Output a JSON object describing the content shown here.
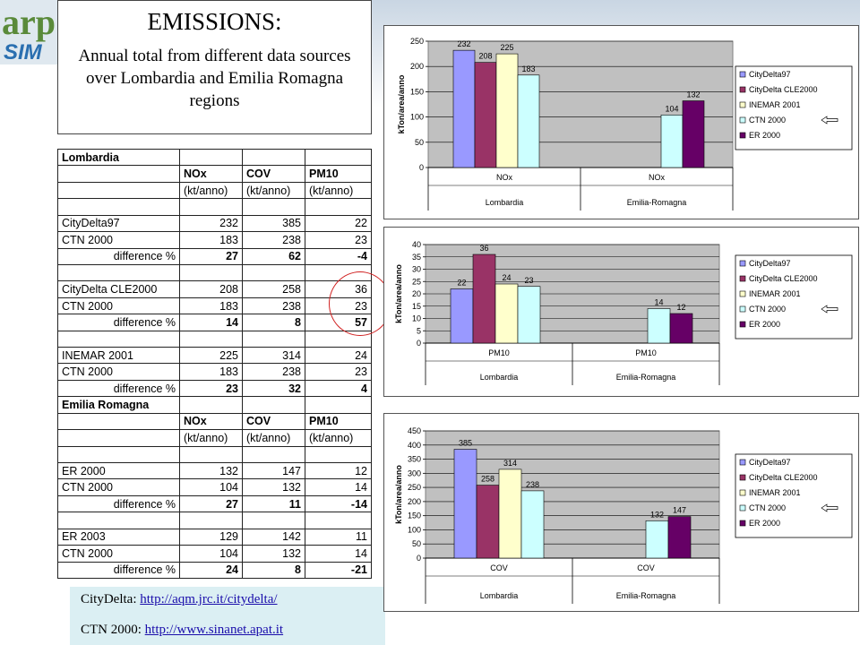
{
  "logo": {
    "text": "arp",
    "sub": "SIM"
  },
  "title": {
    "heading": "EMISSIONS:",
    "subtitle": "Annual total from different data sources over Lombardia and Emilia Romagna regions"
  },
  "table": {
    "sections": [
      {
        "region": "Lombardia",
        "headers": [
          "NOx",
          "COV",
          "PM10"
        ],
        "units": [
          "(kt/anno)",
          "(kt/anno)",
          "(kt/anno)"
        ],
        "groups": [
          {
            "rows": [
              {
                "label": "CityDelta97",
                "values": [
                  "232",
                  "385",
                  "22"
                ]
              },
              {
                "label": "CTN 2000",
                "values": [
                  "183",
                  "238",
                  "23"
                ]
              },
              {
                "label": "difference %",
                "values": [
                  "27",
                  "62",
                  "-4"
                ],
                "diff": true
              }
            ]
          },
          {
            "rows": [
              {
                "label": "CityDelta CLE2000",
                "values": [
                  "208",
                  "258",
                  "36"
                ]
              },
              {
                "label": "CTN 2000",
                "values": [
                  "183",
                  "238",
                  "23"
                ]
              },
              {
                "label": "difference %",
                "values": [
                  "14",
                  "8",
                  "57"
                ],
                "diff": true
              }
            ]
          },
          {
            "rows": [
              {
                "label": "INEMAR 2001",
                "values": [
                  "225",
                  "314",
                  "24"
                ]
              },
              {
                "label": "CTN 2000",
                "values": [
                  "183",
                  "238",
                  "23"
                ]
              },
              {
                "label": "difference %",
                "values": [
                  "23",
                  "32",
                  "4"
                ],
                "diff": true
              }
            ]
          }
        ]
      },
      {
        "region": "Emilia Romagna",
        "headers": [
          "NOx",
          "COV",
          "PM10"
        ],
        "units": [
          "(kt/anno)",
          "(kt/anno)",
          "(kt/anno)"
        ],
        "groups": [
          {
            "rows": [
              {
                "label": "ER 2000",
                "values": [
                  "132",
                  "147",
                  "12"
                ]
              },
              {
                "label": "CTN 2000",
                "values": [
                  "104",
                  "132",
                  "14"
                ]
              },
              {
                "label": "difference %",
                "values": [
                  "27",
                  "11",
                  "-14"
                ],
                "diff": true
              }
            ]
          },
          {
            "rows": [
              {
                "label": "ER 2003",
                "values": [
                  "129",
                  "142",
                  "11"
                ]
              },
              {
                "label": "CTN 2000",
                "values": [
                  "104",
                  "132",
                  "14"
                ]
              },
              {
                "label": "difference %",
                "values": [
                  "24",
                  "8",
                  "-21"
                ],
                "diff": true
              }
            ]
          }
        ]
      }
    ]
  },
  "links": {
    "citydelta_label": "CityDelta:",
    "citydelta_url": "http://aqm.jrc.it/citydelta/",
    "ctn_label": "CTN 2000:",
    "ctn_url": "http://www.sinanet.apat.it"
  },
  "colors": {
    "CityDelta97": "#9999ff",
    "CityDelta CLE2000": "#993366",
    "INEMAR 2001": "#ffffcc",
    "CTN 2000": "#ccffff",
    "ER 2000": "#660066"
  },
  "chart_data": [
    {
      "type": "bar",
      "ylabel": "kTon/area/anno",
      "ylim": [
        0,
        250
      ],
      "yticks": [
        0,
        50,
        100,
        150,
        200,
        250
      ],
      "legend_position": "right",
      "grid": true,
      "groups": [
        {
          "category": "NOx",
          "region": "Lombardia",
          "bars": [
            {
              "series": "CityDelta97",
              "value": 232
            },
            {
              "series": "CityDelta CLE2000",
              "value": 208
            },
            {
              "series": "INEMAR 2001",
              "value": 225
            },
            {
              "series": "CTN 2000",
              "value": 183
            }
          ]
        },
        {
          "category": "NOx",
          "region": "Emilia-Romagna",
          "bars": [
            {
              "series": "CTN 2000",
              "value": 104
            },
            {
              "series": "ER 2000",
              "value": 132
            }
          ]
        }
      ],
      "legend": [
        "CityDelta97",
        "CityDelta CLE2000",
        "INEMAR 2001",
        "CTN 2000",
        "ER 2000"
      ],
      "highlight_series": "CTN 2000"
    },
    {
      "type": "bar",
      "ylabel": "kTon/area/anno",
      "ylim": [
        0,
        40
      ],
      "yticks": [
        0,
        5,
        10,
        15,
        20,
        25,
        30,
        35,
        40
      ],
      "legend_position": "right",
      "grid": true,
      "groups": [
        {
          "category": "PM10",
          "region": "Lombardia",
          "bars": [
            {
              "series": "CityDelta97",
              "value": 22
            },
            {
              "series": "CityDelta CLE2000",
              "value": 36
            },
            {
              "series": "INEMAR 2001",
              "value": 24
            },
            {
              "series": "CTN 2000",
              "value": 23
            }
          ]
        },
        {
          "category": "PM10",
          "region": "Emilia-Romagna",
          "bars": [
            {
              "series": "CTN 2000",
              "value": 14
            },
            {
              "series": "ER 2000",
              "value": 12
            }
          ]
        }
      ],
      "legend": [
        "CityDelta97",
        "CityDelta CLE2000",
        "INEMAR 2001",
        "CTN 2000",
        "ER 2000"
      ],
      "highlight_series": "CTN 2000"
    },
    {
      "type": "bar",
      "ylabel": "kTon/area/anno",
      "ylim": [
        0,
        450
      ],
      "yticks": [
        0,
        50,
        100,
        150,
        200,
        250,
        300,
        350,
        400,
        450
      ],
      "legend_position": "right",
      "grid": true,
      "groups": [
        {
          "category": "COV",
          "region": "Lombardia",
          "bars": [
            {
              "series": "CityDelta97",
              "value": 385
            },
            {
              "series": "CityDelta CLE2000",
              "value": 258
            },
            {
              "series": "INEMAR 2001",
              "value": 314
            },
            {
              "series": "CTN 2000",
              "value": 238
            }
          ]
        },
        {
          "category": "COV",
          "region": "Emilia-Romagna",
          "bars": [
            {
              "series": "CTN 2000",
              "value": 132
            },
            {
              "series": "ER 2000",
              "value": 147
            }
          ]
        }
      ],
      "legend": [
        "CityDelta97",
        "CityDelta CLE2000",
        "INEMAR 2001",
        "CTN 2000",
        "ER 2000"
      ],
      "highlight_series": "CTN 2000"
    }
  ]
}
